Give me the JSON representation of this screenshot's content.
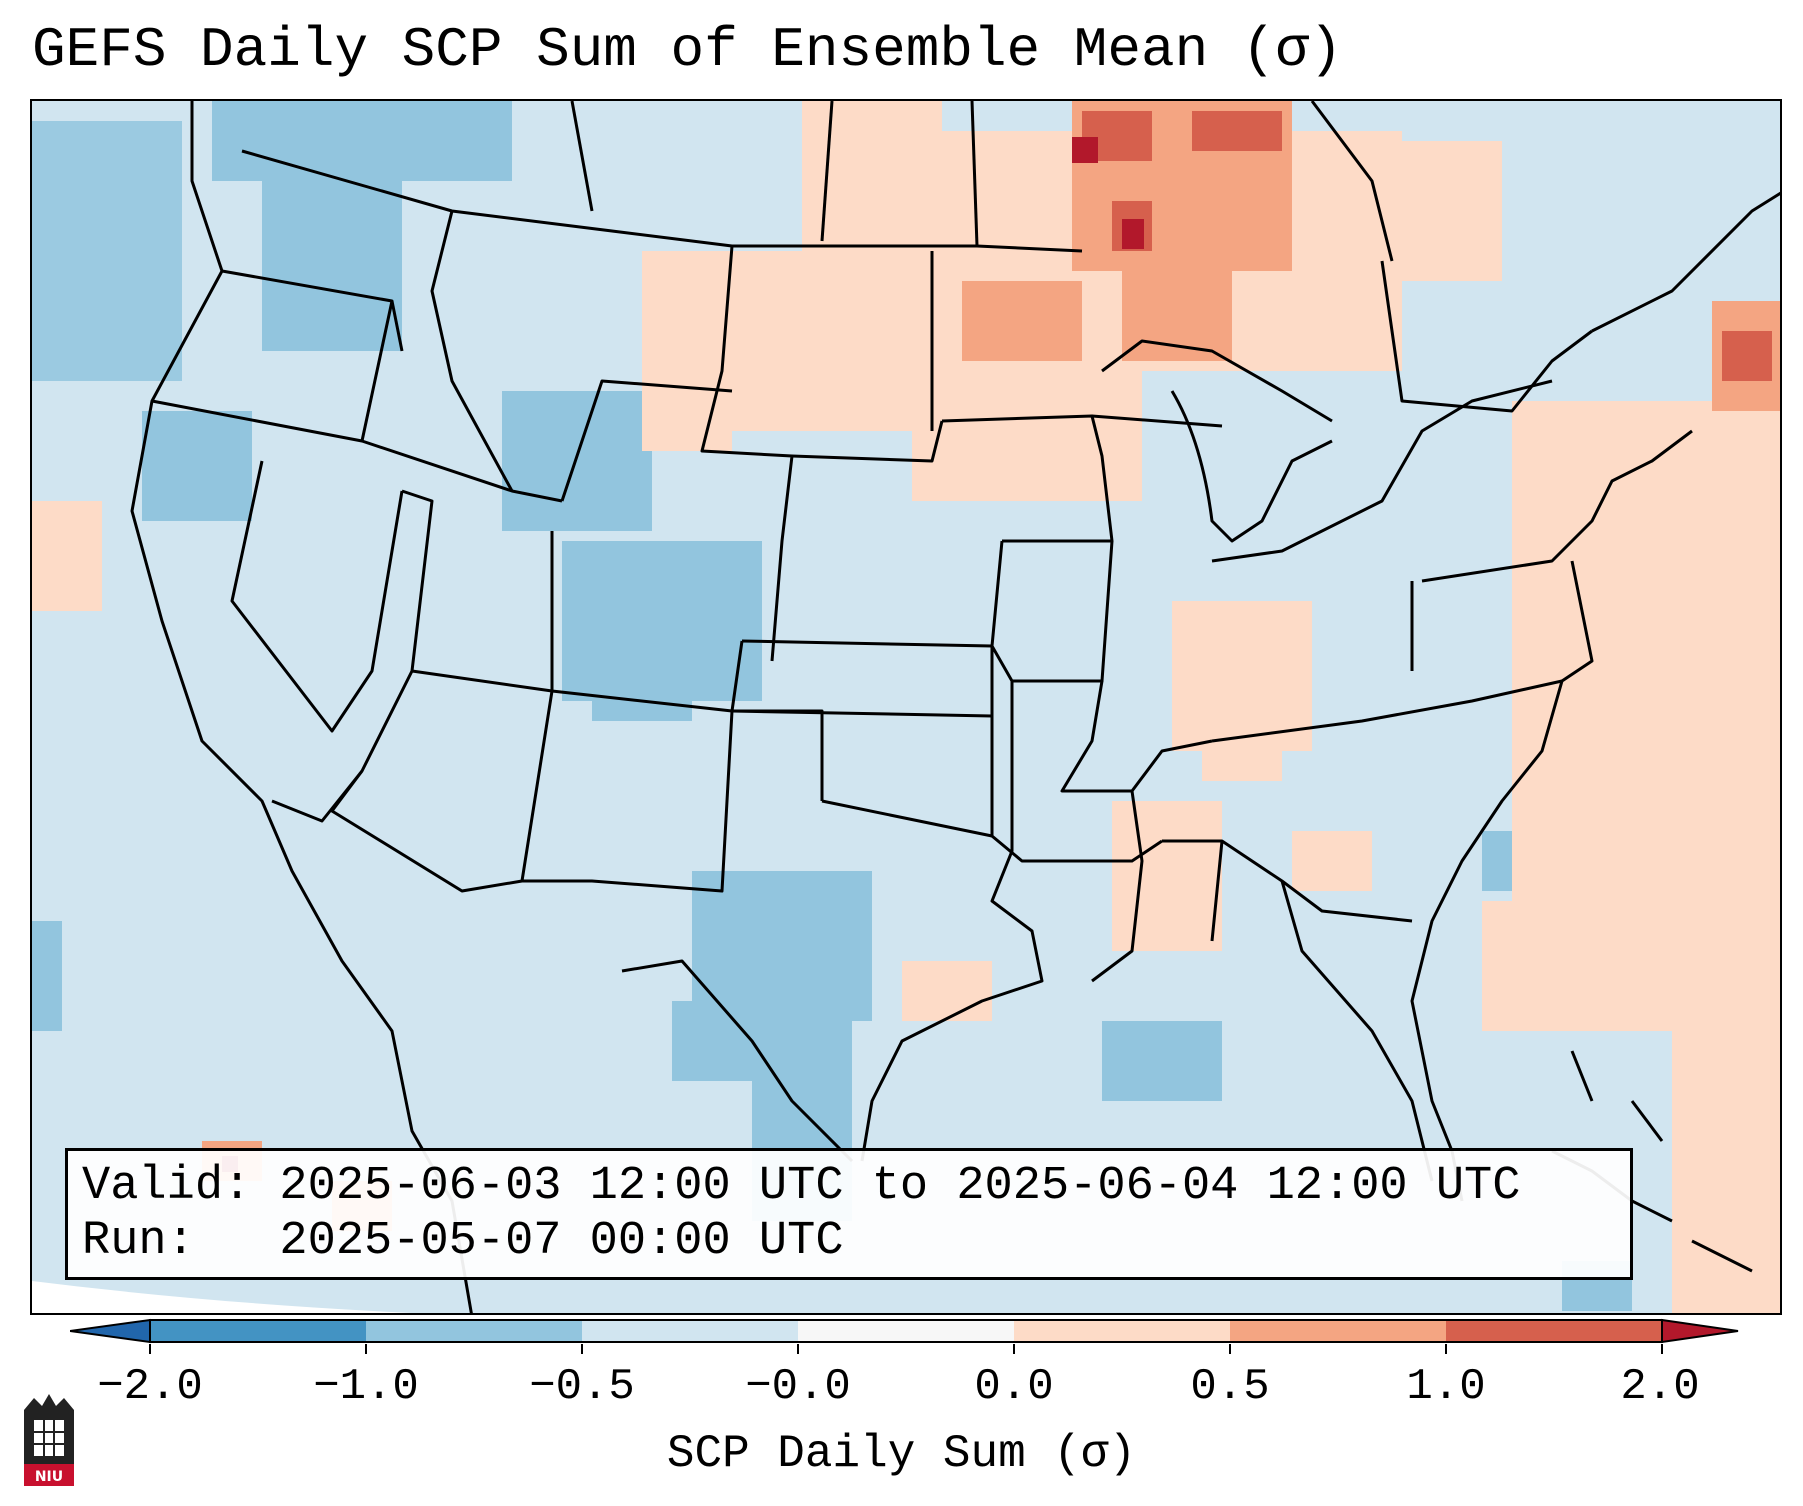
{
  "title": "GEFS Daily SCP Sum of Ensemble Mean (σ)",
  "info": {
    "valid_line": "Valid: 2025-06-03 12:00 UTC to 2025-06-04 12:00 UTC",
    "run_line": "Run:   2025-05-07 00:00 UTC"
  },
  "colorbar": {
    "label": "SCP Daily Sum (σ)",
    "ticks": [
      "−2.0",
      "−1.0",
      "−0.5",
      "−0.0",
      "0.0",
      "0.5",
      "1.0",
      "2.0"
    ],
    "colors": [
      "#2166ac",
      "#4393c3",
      "#92c5de",
      "#d1e5f0",
      "#f7f7f7",
      "#fddbc7",
      "#f4a582",
      "#d6604d",
      "#b2182b"
    ]
  },
  "logo": {
    "text": "NIU",
    "icon": "niu-logo-icon"
  }
}
